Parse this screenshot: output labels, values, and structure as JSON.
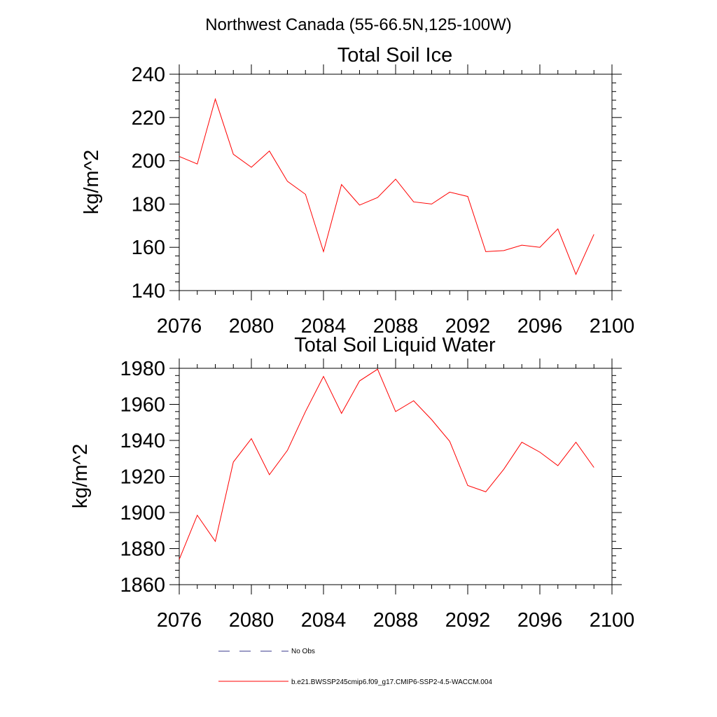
{
  "figure": {
    "suptitle": "Northwest Canada (55-66.5N,125-100W)"
  },
  "legend": {
    "placement": "bottom",
    "entries": [
      {
        "label": "No Obs",
        "style": "dashed",
        "color": "#3a3a8c"
      },
      {
        "label": "b.e21.BWSSP245cmip6.f09_g17.CMIP6-SSP2-4.5-WACCM.004",
        "style": "solid",
        "color": "#ff0000"
      }
    ]
  },
  "chart_data": [
    {
      "type": "line",
      "title": "Total Soil Ice",
      "xlabel": "",
      "ylabel": "kg/m^2",
      "xlim": [
        2076,
        2100
      ],
      "ylim": [
        140,
        240
      ],
      "xticks": [
        2076,
        2080,
        2084,
        2088,
        2092,
        2096,
        2100
      ],
      "yticks": [
        140,
        160,
        180,
        200,
        220,
        240
      ],
      "grid": false,
      "series": [
        {
          "name": "b.e21.BWSSP245cmip6.f09_g17.CMIP6-SSP2-4.5-WACCM.004",
          "color": "#ff0000",
          "x": [
            2076,
            2077,
            2078,
            2079,
            2080,
            2081,
            2082,
            2083,
            2084,
            2085,
            2086,
            2087,
            2088,
            2089,
            2090,
            2091,
            2092,
            2093,
            2094,
            2095,
            2096,
            2097,
            2098,
            2099
          ],
          "values": [
            202,
            198.5,
            228.5,
            203,
            197,
            204.5,
            190.5,
            184.5,
            158,
            189,
            179.5,
            183,
            191.5,
            181,
            180,
            185.5,
            183.5,
            158,
            158.5,
            161,
            160,
            168.5,
            147.5,
            166
          ]
        }
      ]
    },
    {
      "type": "line",
      "title": "Total Soil Liquid Water",
      "xlabel": "",
      "ylabel": "kg/m^2",
      "xlim": [
        2076,
        2100
      ],
      "ylim": [
        1860,
        1980
      ],
      "xticks": [
        2076,
        2080,
        2084,
        2088,
        2092,
        2096,
        2100
      ],
      "yticks": [
        1860,
        1880,
        1900,
        1920,
        1940,
        1960,
        1980
      ],
      "grid": false,
      "series": [
        {
          "name": "b.e21.BWSSP245cmip6.f09_g17.CMIP6-SSP2-4.5-WACCM.004",
          "color": "#ff0000",
          "x": [
            2076,
            2077,
            2078,
            2079,
            2080,
            2081,
            2082,
            2083,
            2084,
            2085,
            2086,
            2087,
            2088,
            2089,
            2090,
            2091,
            2092,
            2093,
            2094,
            2095,
            2096,
            2097,
            2098,
            2099
          ],
          "values": [
            1874,
            1898.5,
            1884,
            1928,
            1941,
            1921,
            1934.5,
            1956,
            1975.5,
            1955,
            1973,
            1979.5,
            1956,
            1962,
            1951.5,
            1939.5,
            1915,
            1911.5,
            1924,
            1939,
            1933.5,
            1926,
            1939,
            1925
          ]
        }
      ]
    }
  ]
}
